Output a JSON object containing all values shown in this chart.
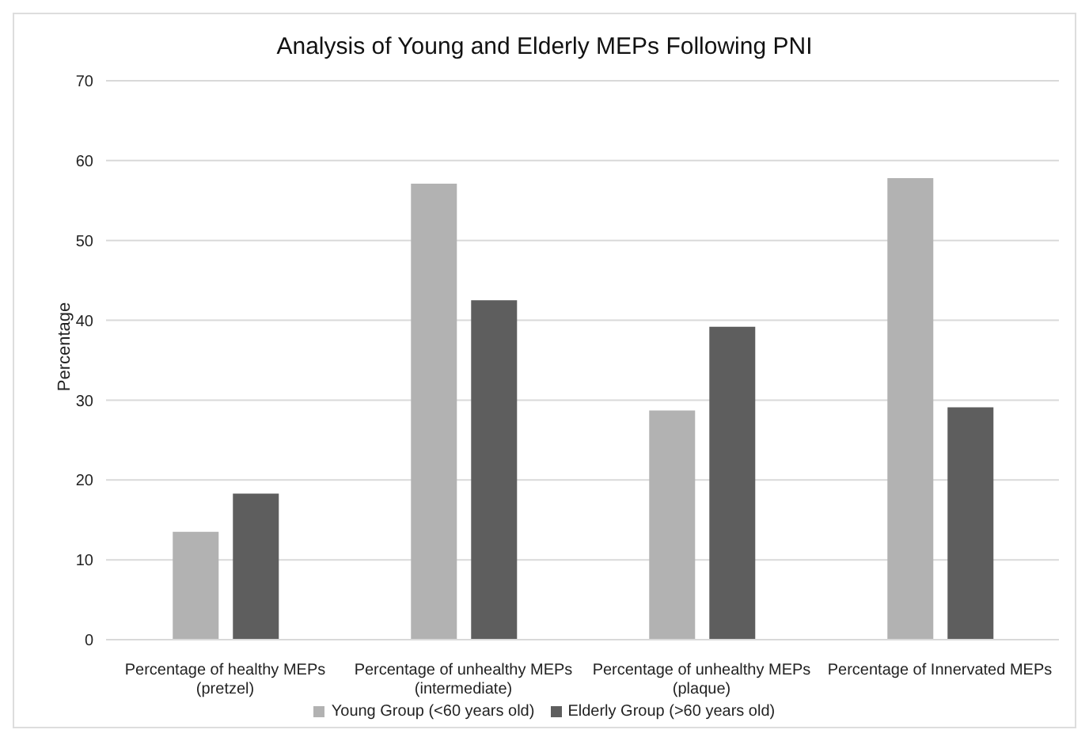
{
  "chart_data": {
    "type": "bar",
    "title": "Analysis of Young and Elderly MEPs Following PNI",
    "ylabel": "Percentage",
    "categories": [
      "Percentage of healthy MEPs (pretzel)",
      "Percentage of unhealthy MEPs (intermediate)",
      "Percentage of unhealthy MEPs (plaque)",
      "Percentage of Innervated MEPs"
    ],
    "series": [
      {
        "name": "Young Group (<60 years old)",
        "color": "#b2b2b2",
        "values": [
          13.5,
          57.1,
          28.7,
          57.8
        ]
      },
      {
        "name": "Elderly Group (>60 years old)",
        "color": "#5e5e5e",
        "values": [
          18.3,
          42.5,
          39.2,
          29.1
        ]
      }
    ],
    "ylim": [
      0,
      70
    ],
    "yticks": [
      0,
      10,
      20,
      30,
      40,
      50,
      60,
      70
    ],
    "grid": "y",
    "legend": "bottom"
  }
}
